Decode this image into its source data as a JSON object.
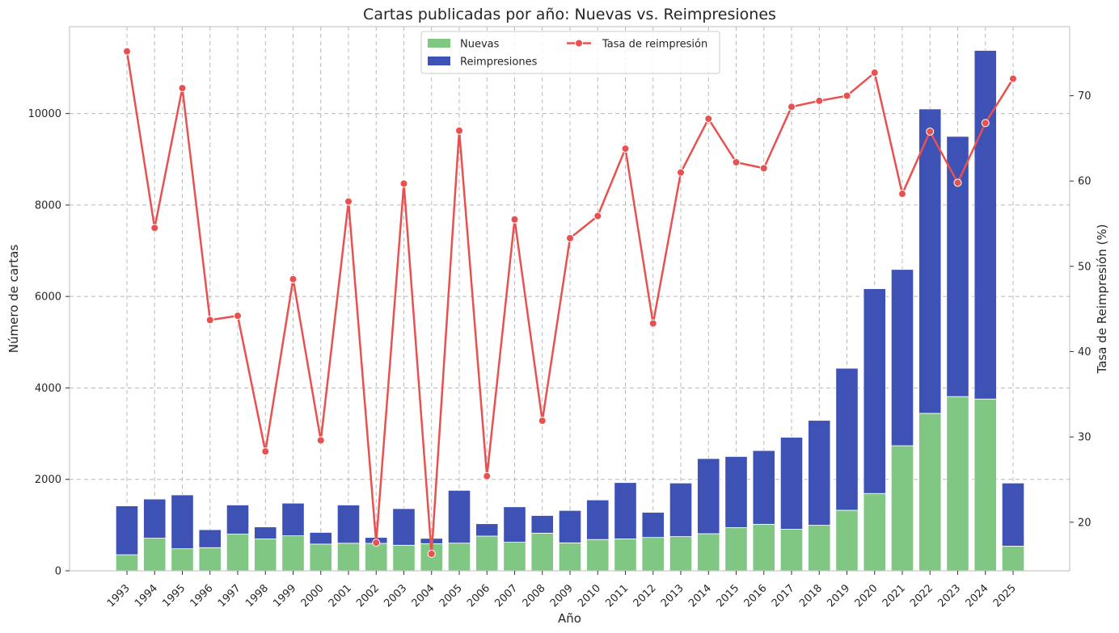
{
  "chart_data": {
    "type": "bar",
    "title": "Cartas publicadas por año: Nuevas vs. Reimpresiones",
    "xlabel": "Año",
    "ylabel": "Número de cartas",
    "y2label": "Tasa de Reimpresión (%)",
    "categories": [
      "1993",
      "1994",
      "1995",
      "1996",
      "1997",
      "1998",
      "1999",
      "2000",
      "2001",
      "2002",
      "2003",
      "2004",
      "2005",
      "2006",
      "2007",
      "2008",
      "2009",
      "2010",
      "2011",
      "2012",
      "2013",
      "2014",
      "2015",
      "2016",
      "2017",
      "2018",
      "2019",
      "2020",
      "2021",
      "2022",
      "2023",
      "2024",
      "2025"
    ],
    "series": [
      {
        "name": "Nuevas",
        "kind": "bar",
        "stack": "bottom",
        "color": "#80c783",
        "values": [
          352,
          714,
          483,
          507,
          803,
          698,
          766,
          585,
          604,
          601,
          560,
          594,
          606,
          760,
          626,
          824,
          612,
          685,
          699,
          730,
          749,
          812,
          945,
          1018,
          909,
          996,
          1325,
          1691,
          2736,
          3444,
          3811,
          3757,
          540
        ]
      },
      {
        "name": "Reimpresiones",
        "kind": "bar",
        "stack": "top",
        "color": "#3e52b5",
        "values": [
          1068,
          856,
          1177,
          393,
          637,
          262,
          714,
          255,
          836,
          129,
          800,
          116,
          1154,
          270,
          774,
          386,
          708,
          865,
          1231,
          550,
          1171,
          1643,
          1555,
          1612,
          2011,
          2294,
          3105,
          4479,
          3854,
          6656,
          5689,
          7623,
          1380
        ]
      },
      {
        "name": "Tasa de reimpresión",
        "kind": "line",
        "axis": "right",
        "color": "#e8514f",
        "values": [
          75.2,
          54.5,
          70.9,
          43.7,
          44.2,
          28.3,
          48.5,
          29.6,
          57.6,
          17.6,
          59.7,
          16.3,
          65.9,
          25.4,
          55.5,
          31.9,
          53.3,
          55.9,
          63.8,
          43.3,
          61.0,
          67.3,
          62.2,
          61.5,
          68.7,
          69.4,
          70.0,
          72.7,
          58.5,
          65.8,
          59.8,
          66.8,
          72.0
        ]
      }
    ],
    "ylim": [
      0,
      11900
    ],
    "yticks": [
      0,
      2000,
      4000,
      6000,
      8000,
      10000
    ],
    "y2lim": [
      14.3,
      78.1
    ],
    "y2ticks": [
      20,
      30,
      40,
      50,
      60,
      70
    ],
    "legend": {
      "position": "top-center",
      "columns": 2
    },
    "grid": true
  }
}
